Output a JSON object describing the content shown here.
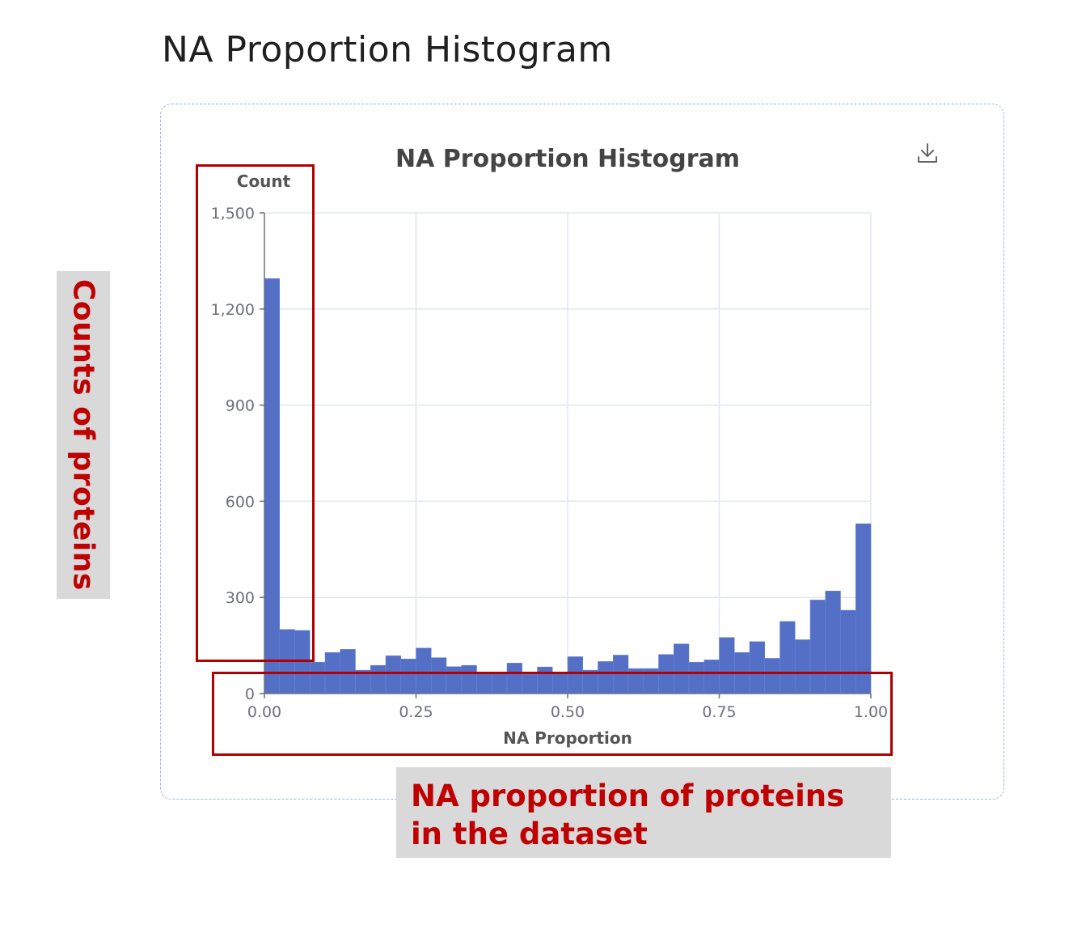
{
  "page": {
    "title": "NA Proportion Histogram"
  },
  "toolbar": {
    "download_icon": "download-icon"
  },
  "annotations": {
    "y_note": "Counts of proteins",
    "x_note": "NA proportion of proteins in the dataset",
    "accent_color": "#c00000",
    "box_color": "#b00000"
  },
  "chart_data": {
    "type": "bar",
    "title": "NA Proportion Histogram",
    "xlabel": "NA Proportion",
    "ylabel": "Count",
    "xlim": [
      0,
      1
    ],
    "ylim": [
      0,
      1500
    ],
    "x_ticks": [
      "0.00",
      "0.25",
      "0.50",
      "0.75",
      "1.00"
    ],
    "y_ticks": [
      "0",
      "300",
      "600",
      "900",
      "1,200",
      "1,500"
    ],
    "grid": true,
    "bar_color": "#5470c6",
    "bin_width": 0.025,
    "bins_start": [
      0,
      0.025,
      0.05,
      0.075,
      0.1,
      0.125,
      0.15,
      0.175,
      0.2,
      0.225,
      0.25,
      0.275,
      0.3,
      0.325,
      0.35,
      0.375,
      0.4,
      0.425,
      0.45,
      0.475,
      0.5,
      0.525,
      0.55,
      0.575,
      0.6,
      0.625,
      0.65,
      0.675,
      0.7,
      0.725,
      0.75,
      0.775,
      0.8,
      0.825,
      0.85,
      0.875,
      0.9,
      0.925,
      0.95,
      0.975
    ],
    "values": [
      1295,
      200,
      197,
      98,
      128,
      138,
      73,
      88,
      118,
      108,
      142,
      112,
      84,
      88,
      67,
      67,
      95,
      60,
      83,
      65,
      115,
      73,
      100,
      120,
      78,
      78,
      122,
      155,
      98,
      105,
      175,
      128,
      162,
      110,
      225,
      168,
      292,
      320,
      260,
      530
    ]
  }
}
